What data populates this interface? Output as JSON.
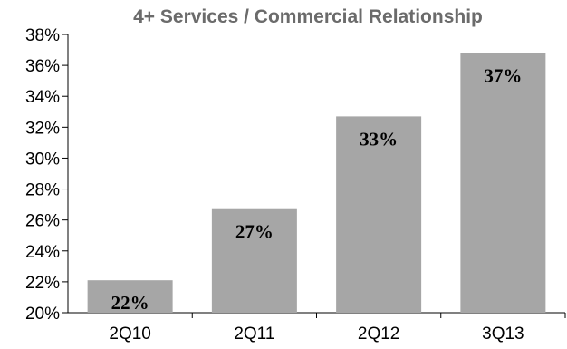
{
  "chart_data": {
    "type": "bar",
    "title": "4+ Services / Commercial Relationship",
    "categories": [
      "2Q10",
      "2Q11",
      "2Q12",
      "3Q13"
    ],
    "values": [
      22.1,
      26.7,
      32.7,
      36.8
    ],
    "data_labels": [
      "22%",
      "27%",
      "33%",
      "37%"
    ],
    "y_ticks": [
      20,
      22,
      24,
      26,
      28,
      30,
      32,
      34,
      36,
      38
    ],
    "y_tick_format": "{}%",
    "ylim": [
      20,
      38
    ],
    "grid": false,
    "bar_color": "#a6a6a6"
  }
}
